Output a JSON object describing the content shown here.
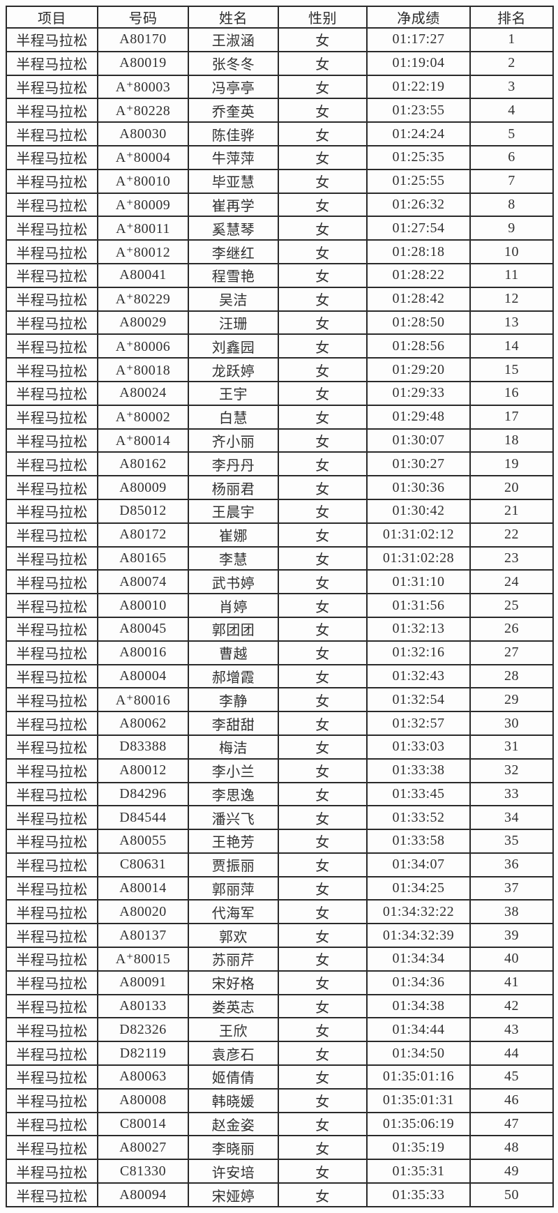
{
  "colors": {
    "background": "#fdfdfd",
    "border": "#2a2a2a",
    "text": "#303030"
  },
  "table": {
    "columns": [
      {
        "key": "event",
        "label": "项目"
      },
      {
        "key": "bib",
        "label": "号码"
      },
      {
        "key": "name",
        "label": "姓名"
      },
      {
        "key": "gender",
        "label": "性别"
      },
      {
        "key": "net_time",
        "label": "净成绩"
      },
      {
        "key": "rank",
        "label": "排名"
      }
    ],
    "rows": [
      {
        "event": "半程马拉松",
        "bib": "A80170",
        "name": "王淑涵",
        "gender": "女",
        "net_time": "01:17:27",
        "rank": "1"
      },
      {
        "event": "半程马拉松",
        "bib": "A80019",
        "name": "张冬冬",
        "gender": "女",
        "net_time": "01:19:04",
        "rank": "2"
      },
      {
        "event": "半程马拉松",
        "bib": "A⁺80003",
        "name": "冯亭亭",
        "gender": "女",
        "net_time": "01:22:19",
        "rank": "3"
      },
      {
        "event": "半程马拉松",
        "bib": "A⁺80228",
        "name": "乔奎英",
        "gender": "女",
        "net_time": "01:23:55",
        "rank": "4"
      },
      {
        "event": "半程马拉松",
        "bib": "A80030",
        "name": "陈佳骅",
        "gender": "女",
        "net_time": "01:24:24",
        "rank": "5"
      },
      {
        "event": "半程马拉松",
        "bib": "A⁺80004",
        "name": "牛萍萍",
        "gender": "女",
        "net_time": "01:25:35",
        "rank": "6"
      },
      {
        "event": "半程马拉松",
        "bib": "A⁺80010",
        "name": "毕亚慧",
        "gender": "女",
        "net_time": "01:25:55",
        "rank": "7"
      },
      {
        "event": "半程马拉松",
        "bib": "A⁺80009",
        "name": "崔再学",
        "gender": "女",
        "net_time": "01:26:32",
        "rank": "8"
      },
      {
        "event": "半程马拉松",
        "bib": "A⁺80011",
        "name": "奚慧琴",
        "gender": "女",
        "net_time": "01:27:54",
        "rank": "9"
      },
      {
        "event": "半程马拉松",
        "bib": "A⁺80012",
        "name": "李继红",
        "gender": "女",
        "net_time": "01:28:18",
        "rank": "10"
      },
      {
        "event": "半程马拉松",
        "bib": "A80041",
        "name": "程雪艳",
        "gender": "女",
        "net_time": "01:28:22",
        "rank": "11"
      },
      {
        "event": "半程马拉松",
        "bib": "A⁺80229",
        "name": "吴洁",
        "gender": "女",
        "net_time": "01:28:42",
        "rank": "12"
      },
      {
        "event": "半程马拉松",
        "bib": "A80029",
        "name": "汪珊",
        "gender": "女",
        "net_time": "01:28:50",
        "rank": "13"
      },
      {
        "event": "半程马拉松",
        "bib": "A⁺80006",
        "name": "刘鑫园",
        "gender": "女",
        "net_time": "01:28:56",
        "rank": "14"
      },
      {
        "event": "半程马拉松",
        "bib": "A⁺80018",
        "name": "龙跃婷",
        "gender": "女",
        "net_time": "01:29:20",
        "rank": "15"
      },
      {
        "event": "半程马拉松",
        "bib": "A80024",
        "name": "王宇",
        "gender": "女",
        "net_time": "01:29:33",
        "rank": "16"
      },
      {
        "event": "半程马拉松",
        "bib": "A⁺80002",
        "name": "白慧",
        "gender": "女",
        "net_time": "01:29:48",
        "rank": "17"
      },
      {
        "event": "半程马拉松",
        "bib": "A⁺80014",
        "name": "齐小丽",
        "gender": "女",
        "net_time": "01:30:07",
        "rank": "18"
      },
      {
        "event": "半程马拉松",
        "bib": "A80162",
        "name": "李丹丹",
        "gender": "女",
        "net_time": "01:30:27",
        "rank": "19"
      },
      {
        "event": "半程马拉松",
        "bib": "A80009",
        "name": "杨丽君",
        "gender": "女",
        "net_time": "01:30:36",
        "rank": "20"
      },
      {
        "event": "半程马拉松",
        "bib": "D85012",
        "name": "王晨宇",
        "gender": "女",
        "net_time": "01:30:42",
        "rank": "21"
      },
      {
        "event": "半程马拉松",
        "bib": "A80172",
        "name": "崔娜",
        "gender": "女",
        "net_time": "01:31:02:12",
        "rank": "22"
      },
      {
        "event": "半程马拉松",
        "bib": "A80165",
        "name": "李慧",
        "gender": "女",
        "net_time": "01:31:02:28",
        "rank": "23"
      },
      {
        "event": "半程马拉松",
        "bib": "A80074",
        "name": "武书婷",
        "gender": "女",
        "net_time": "01:31:10",
        "rank": "24"
      },
      {
        "event": "半程马拉松",
        "bib": "A80010",
        "name": "肖婷",
        "gender": "女",
        "net_time": "01:31:56",
        "rank": "25"
      },
      {
        "event": "半程马拉松",
        "bib": "A80045",
        "name": "郭团团",
        "gender": "女",
        "net_time": "01:32:13",
        "rank": "26"
      },
      {
        "event": "半程马拉松",
        "bib": "A80016",
        "name": "曹越",
        "gender": "女",
        "net_time": "01:32:16",
        "rank": "27"
      },
      {
        "event": "半程马拉松",
        "bib": "A80004",
        "name": "郝增霞",
        "gender": "女",
        "net_time": "01:32:43",
        "rank": "28"
      },
      {
        "event": "半程马拉松",
        "bib": "A⁺80016",
        "name": "李静",
        "gender": "女",
        "net_time": "01:32:54",
        "rank": "29"
      },
      {
        "event": "半程马拉松",
        "bib": "A80062",
        "name": "李甜甜",
        "gender": "女",
        "net_time": "01:32:57",
        "rank": "30"
      },
      {
        "event": "半程马拉松",
        "bib": "D83388",
        "name": "梅洁",
        "gender": "女",
        "net_time": "01:33:03",
        "rank": "31"
      },
      {
        "event": "半程马拉松",
        "bib": "A80012",
        "name": "李小兰",
        "gender": "女",
        "net_time": "01:33:38",
        "rank": "32"
      },
      {
        "event": "半程马拉松",
        "bib": "D84296",
        "name": "李思逸",
        "gender": "女",
        "net_time": "01:33:45",
        "rank": "33"
      },
      {
        "event": "半程马拉松",
        "bib": "D84544",
        "name": "潘兴飞",
        "gender": "女",
        "net_time": "01:33:52",
        "rank": "34"
      },
      {
        "event": "半程马拉松",
        "bib": "A80055",
        "name": "王艳芳",
        "gender": "女",
        "net_time": "01:33:58",
        "rank": "35"
      },
      {
        "event": "半程马拉松",
        "bib": "C80631",
        "name": "贾振丽",
        "gender": "女",
        "net_time": "01:34:07",
        "rank": "36"
      },
      {
        "event": "半程马拉松",
        "bib": "A80014",
        "name": "郭丽萍",
        "gender": "女",
        "net_time": "01:34:25",
        "rank": "37"
      },
      {
        "event": "半程马拉松",
        "bib": "A80020",
        "name": "代海军",
        "gender": "女",
        "net_time": "01:34:32:22",
        "rank": "38"
      },
      {
        "event": "半程马拉松",
        "bib": "A80137",
        "name": "郭欢",
        "gender": "女",
        "net_time": "01:34:32:39",
        "rank": "39"
      },
      {
        "event": "半程马拉松",
        "bib": "A⁺80015",
        "name": "苏丽芹",
        "gender": "女",
        "net_time": "01:34:34",
        "rank": "40"
      },
      {
        "event": "半程马拉松",
        "bib": "A80091",
        "name": "宋好格",
        "gender": "女",
        "net_time": "01:34:36",
        "rank": "41"
      },
      {
        "event": "半程马拉松",
        "bib": "A80133",
        "name": "娄英志",
        "gender": "女",
        "net_time": "01:34:38",
        "rank": "42"
      },
      {
        "event": "半程马拉松",
        "bib": "D82326",
        "name": "王欣",
        "gender": "女",
        "net_time": "01:34:44",
        "rank": "43"
      },
      {
        "event": "半程马拉松",
        "bib": "D82119",
        "name": "袁彦石",
        "gender": "女",
        "net_time": "01:34:50",
        "rank": "44"
      },
      {
        "event": "半程马拉松",
        "bib": "A80063",
        "name": "姬倩倩",
        "gender": "女",
        "net_time": "01:35:01:16",
        "rank": "45"
      },
      {
        "event": "半程马拉松",
        "bib": "A80008",
        "name": "韩晓媛",
        "gender": "女",
        "net_time": "01:35:01:31",
        "rank": "46"
      },
      {
        "event": "半程马拉松",
        "bib": "C80014",
        "name": "赵金姿",
        "gender": "女",
        "net_time": "01:35:06:19",
        "rank": "47"
      },
      {
        "event": "半程马拉松",
        "bib": "A80027",
        "name": "李晓丽",
        "gender": "女",
        "net_time": "01:35:19",
        "rank": "48"
      },
      {
        "event": "半程马拉松",
        "bib": "C81330",
        "name": "许安培",
        "gender": "女",
        "net_time": "01:35:31",
        "rank": "49"
      },
      {
        "event": "半程马拉松",
        "bib": "A80094",
        "name": "宋娅婷",
        "gender": "女",
        "net_time": "01:35:33",
        "rank": "50"
      }
    ]
  }
}
